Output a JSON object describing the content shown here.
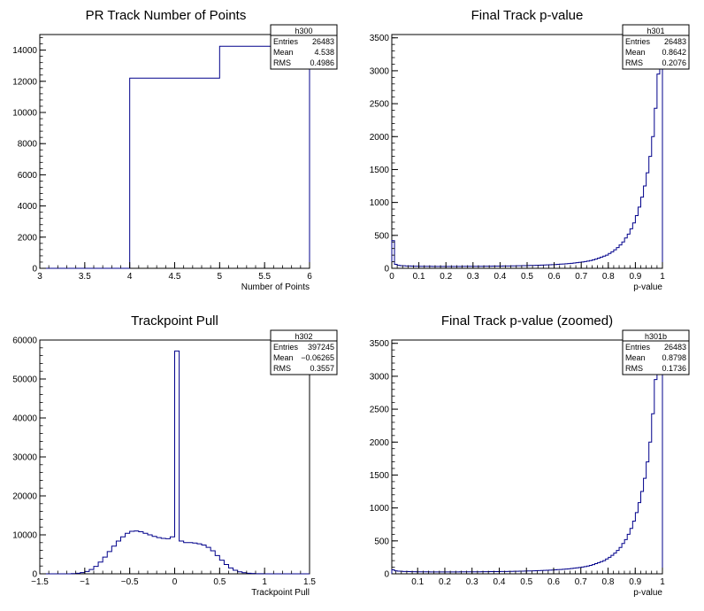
{
  "chart_data": [
    {
      "type": "histogram",
      "title": "PR Track Number of Points",
      "xlabel": "Number of Points",
      "ylabel": "",
      "xlim": [
        3,
        6
      ],
      "ylim": [
        0,
        15000
      ],
      "xticks": [
        "3",
        "3.5",
        "4",
        "4.5",
        "5",
        "5.5",
        "6"
      ],
      "yticks": [
        "0",
        "2000",
        "4000",
        "6000",
        "8000",
        "10000",
        "12000",
        "14000"
      ],
      "color": "#00008b",
      "stats": {
        "name": "h300",
        "rows": [
          [
            "Entries",
            "26483"
          ],
          [
            "Mean",
            "4.538"
          ],
          [
            "RMS",
            "0.4986"
          ]
        ]
      },
      "bins": {
        "edges": [
          3,
          4,
          5,
          6
        ],
        "values": [
          0,
          12200,
          14250
        ]
      }
    },
    {
      "type": "histogram",
      "title": "Final Track p-value",
      "xlabel": "p-value",
      "ylabel": "",
      "xlim": [
        0,
        1
      ],
      "ylim": [
        0,
        3550
      ],
      "xticks": [
        "0",
        "0.1",
        "0.2",
        "0.3",
        "0.4",
        "0.5",
        "0.6",
        "0.7",
        "0.8",
        "0.9",
        "1"
      ],
      "yticks": [
        "0",
        "500",
        "1000",
        "1500",
        "2000",
        "2500",
        "3000",
        "3500"
      ],
      "color": "#00008b",
      "stats": {
        "name": "h301",
        "rows": [
          [
            "Entries",
            "26483"
          ],
          [
            "Mean",
            "0.8642"
          ],
          [
            "RMS",
            "0.2076"
          ]
        ]
      },
      "bins": {
        "start": 0,
        "width": 0.01,
        "values": [
          420,
          60,
          45,
          40,
          38,
          36,
          35,
          33,
          32,
          32,
          31,
          31,
          30,
          30,
          30,
          29,
          29,
          29,
          29,
          29,
          29,
          29,
          29,
          29,
          29,
          29,
          30,
          30,
          30,
          30,
          30,
          31,
          31,
          31,
          32,
          32,
          32,
          33,
          33,
          34,
          34,
          35,
          35,
          36,
          37,
          37,
          38,
          39,
          40,
          41,
          42,
          43,
          44,
          45,
          47,
          48,
          50,
          52,
          54,
          56,
          58,
          60,
          63,
          66,
          69,
          72,
          76,
          80,
          85,
          90,
          96,
          102,
          110,
          118,
          128,
          140,
          155,
          170,
          185,
          200,
          225,
          250,
          280,
          315,
          355,
          400,
          460,
          520,
          600,
          690,
          800,
          930,
          1080,
          1250,
          1450,
          1700,
          2000,
          2430,
          2950,
          3300
        ]
      }
    },
    {
      "type": "histogram",
      "title": "Trackpoint Pull",
      "xlabel": "Trackpoint Pull",
      "ylabel": "",
      "xlim": [
        -1.5,
        1.5
      ],
      "ylim": [
        0,
        60000
      ],
      "xticks": [
        "−1.5",
        "−1",
        "−0.5",
        "0",
        "0.5",
        "1",
        "1.5"
      ],
      "yticks": [
        "0",
        "10000",
        "20000",
        "30000",
        "40000",
        "50000",
        "60000"
      ],
      "color": "#00008b",
      "stats": {
        "name": "h302",
        "rows": [
          [
            "Entries",
            "397245"
          ],
          [
            "Mean",
            "−0.06265"
          ],
          [
            "RMS",
            "0.3557"
          ]
        ]
      },
      "bins": {
        "start": -1.5,
        "width": 0.05,
        "values": [
          0,
          0,
          0,
          0,
          0,
          0,
          0,
          50,
          150,
          300,
          600,
          1100,
          1900,
          3000,
          4300,
          5700,
          7100,
          8400,
          9500,
          10400,
          10900,
          11000,
          10800,
          10400,
          10000,
          9600,
          9300,
          9100,
          9000,
          9500,
          57200,
          8400,
          8000,
          8000,
          7900,
          7700,
          7400,
          6800,
          5900,
          4700,
          3500,
          2400,
          1500,
          900,
          500,
          280,
          150,
          80,
          40,
          20,
          10,
          5,
          0,
          0,
          0,
          0,
          0,
          0,
          0,
          0
        ]
      }
    },
    {
      "type": "histogram",
      "title": "Final Track p-value (zoomed)",
      "xlabel": "p-value",
      "ylabel": "",
      "xlim": [
        0.005,
        1
      ],
      "ylim": [
        0,
        3550
      ],
      "xticks": [
        "0.1",
        "0.2",
        "0.3",
        "0.4",
        "0.5",
        "0.6",
        "0.7",
        "0.8",
        "0.9",
        "1"
      ],
      "yticks": [
        "0",
        "500",
        "1000",
        "1500",
        "2000",
        "2500",
        "3000",
        "3500"
      ],
      "color": "#00008b",
      "stats": {
        "name": "h301b",
        "rows": [
          [
            "Entries",
            "26483"
          ],
          [
            "Mean",
            "0.8798"
          ],
          [
            "RMS",
            "0.1736"
          ]
        ]
      },
      "bins": {
        "start": 0.005,
        "width": 0.00995,
        "values": [
          60,
          45,
          40,
          38,
          36,
          35,
          33,
          32,
          32,
          31,
          31,
          30,
          30,
          30,
          29,
          29,
          29,
          29,
          29,
          29,
          29,
          29,
          29,
          29,
          29,
          30,
          30,
          30,
          30,
          30,
          31,
          31,
          31,
          32,
          32,
          32,
          33,
          33,
          34,
          34,
          35,
          35,
          36,
          37,
          37,
          38,
          39,
          40,
          41,
          42,
          43,
          44,
          45,
          47,
          48,
          50,
          52,
          54,
          56,
          58,
          60,
          63,
          66,
          69,
          72,
          76,
          80,
          85,
          90,
          96,
          102,
          110,
          118,
          128,
          140,
          155,
          170,
          185,
          200,
          225,
          250,
          280,
          315,
          355,
          400,
          460,
          520,
          600,
          690,
          800,
          930,
          1080,
          1250,
          1450,
          1700,
          2000,
          2430,
          2950,
          3300,
          3400
        ]
      }
    }
  ]
}
